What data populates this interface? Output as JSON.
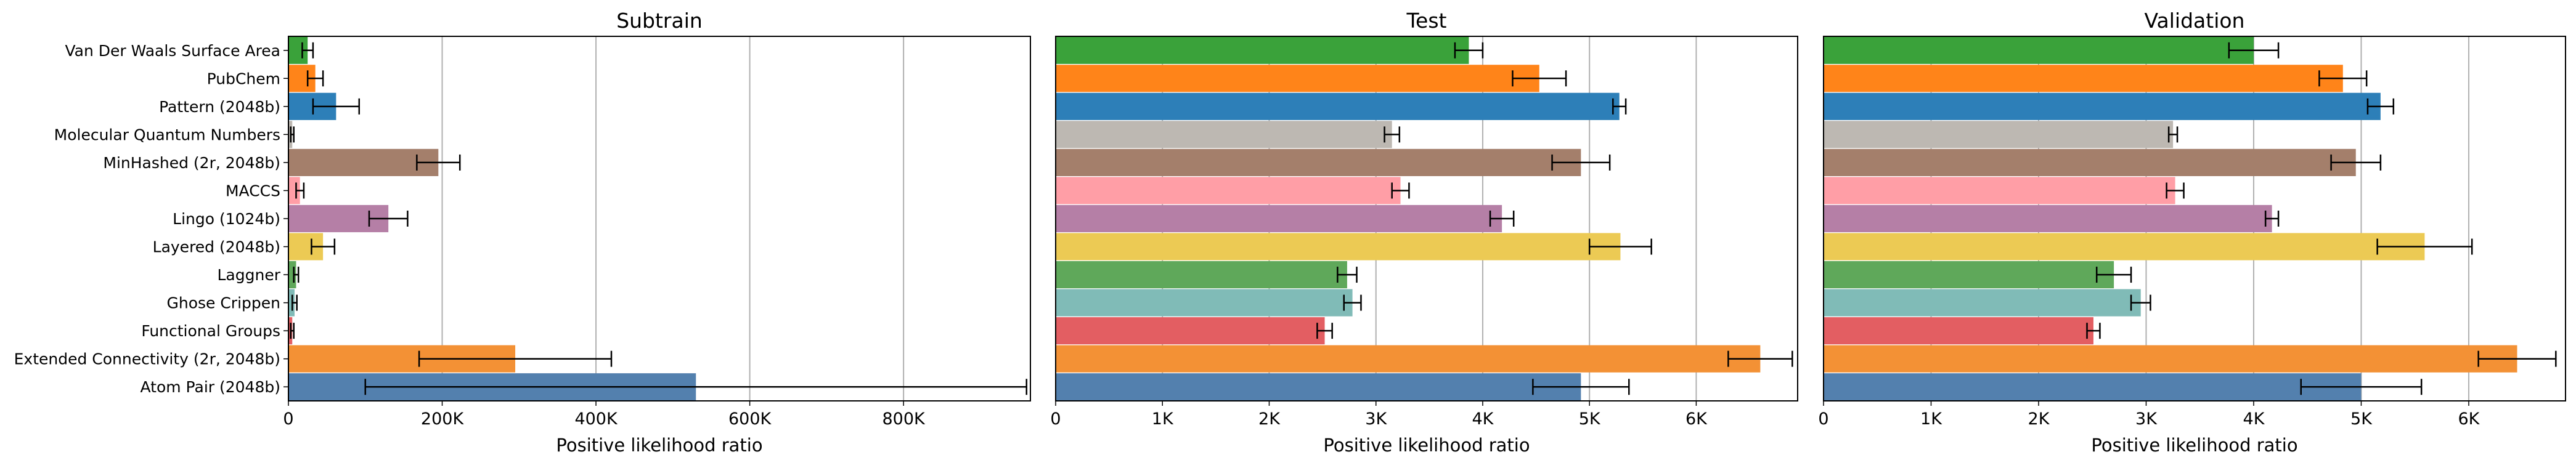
{
  "chart_data": {
    "type": "bar",
    "orientation": "horizontal",
    "xlabel": "Positive likelihood ratio",
    "categories": [
      "Van Der Waals Surface Area",
      "PubChem",
      "Pattern (2048b)",
      "Molecular Quantum Numbers",
      "MinHashed (2r, 2048b)",
      "MACCS",
      "Lingo (1024b)",
      "Layered (2048b)",
      "Laggner",
      "Ghose Crippen",
      "Functional Groups",
      "Extended Connectivity (2r, 2048b)",
      "Atom Pair (2048b)"
    ],
    "colors": [
      "#3aa23a",
      "#ff8419",
      "#2d7fb8",
      "#bdb8b2",
      "#a47f6b",
      "#ff9ea6",
      "#b57fa6",
      "#ecca54",
      "#5fa85a",
      "#80bbb7",
      "#e35e62",
      "#f39135",
      "#5380ae"
    ],
    "grid": "vertical",
    "panels": [
      {
        "title": "Subtrain",
        "xlim": [
          0,
          965000
        ],
        "xticks": [
          0,
          200000,
          400000,
          600000,
          800000
        ],
        "xtick_labels": [
          "0",
          "200K",
          "400K",
          "600K",
          "800K"
        ],
        "values": [
          25000,
          35000,
          62000,
          5000,
          195000,
          15000,
          130000,
          45000,
          10000,
          8000,
          5000,
          295000,
          530000
        ],
        "errors": [
          7000,
          10000,
          30000,
          2000,
          28000,
          5000,
          25000,
          15000,
          3000,
          3000,
          2000,
          125000,
          430000
        ]
      },
      {
        "title": "Test",
        "xlim": [
          0,
          6950
        ],
        "xticks": [
          0,
          1000,
          2000,
          3000,
          4000,
          5000,
          6000
        ],
        "xtick_labels": [
          "0",
          "1K",
          "2K",
          "3K",
          "4K",
          "5K",
          "6K"
        ],
        "values": [
          3870,
          4530,
          5280,
          3150,
          4920,
          3230,
          4180,
          5290,
          2730,
          2780,
          2520,
          6600,
          4920
        ],
        "errors": [
          130,
          250,
          60,
          70,
          270,
          80,
          110,
          290,
          90,
          80,
          70,
          300,
          450
        ]
      },
      {
        "title": "Validation",
        "xlim": [
          0,
          6900
        ],
        "xticks": [
          0,
          1000,
          2000,
          3000,
          4000,
          5000,
          6000
        ],
        "xtick_labels": [
          "0",
          "1K",
          "2K",
          "3K",
          "4K",
          "5K",
          "6K"
        ],
        "values": [
          4000,
          4830,
          5180,
          3250,
          4950,
          3270,
          4170,
          5590,
          2700,
          2950,
          2510,
          6450,
          5000
        ],
        "errors": [
          230,
          220,
          120,
          40,
          230,
          80,
          60,
          440,
          160,
          90,
          60,
          360,
          560
        ]
      }
    ]
  }
}
